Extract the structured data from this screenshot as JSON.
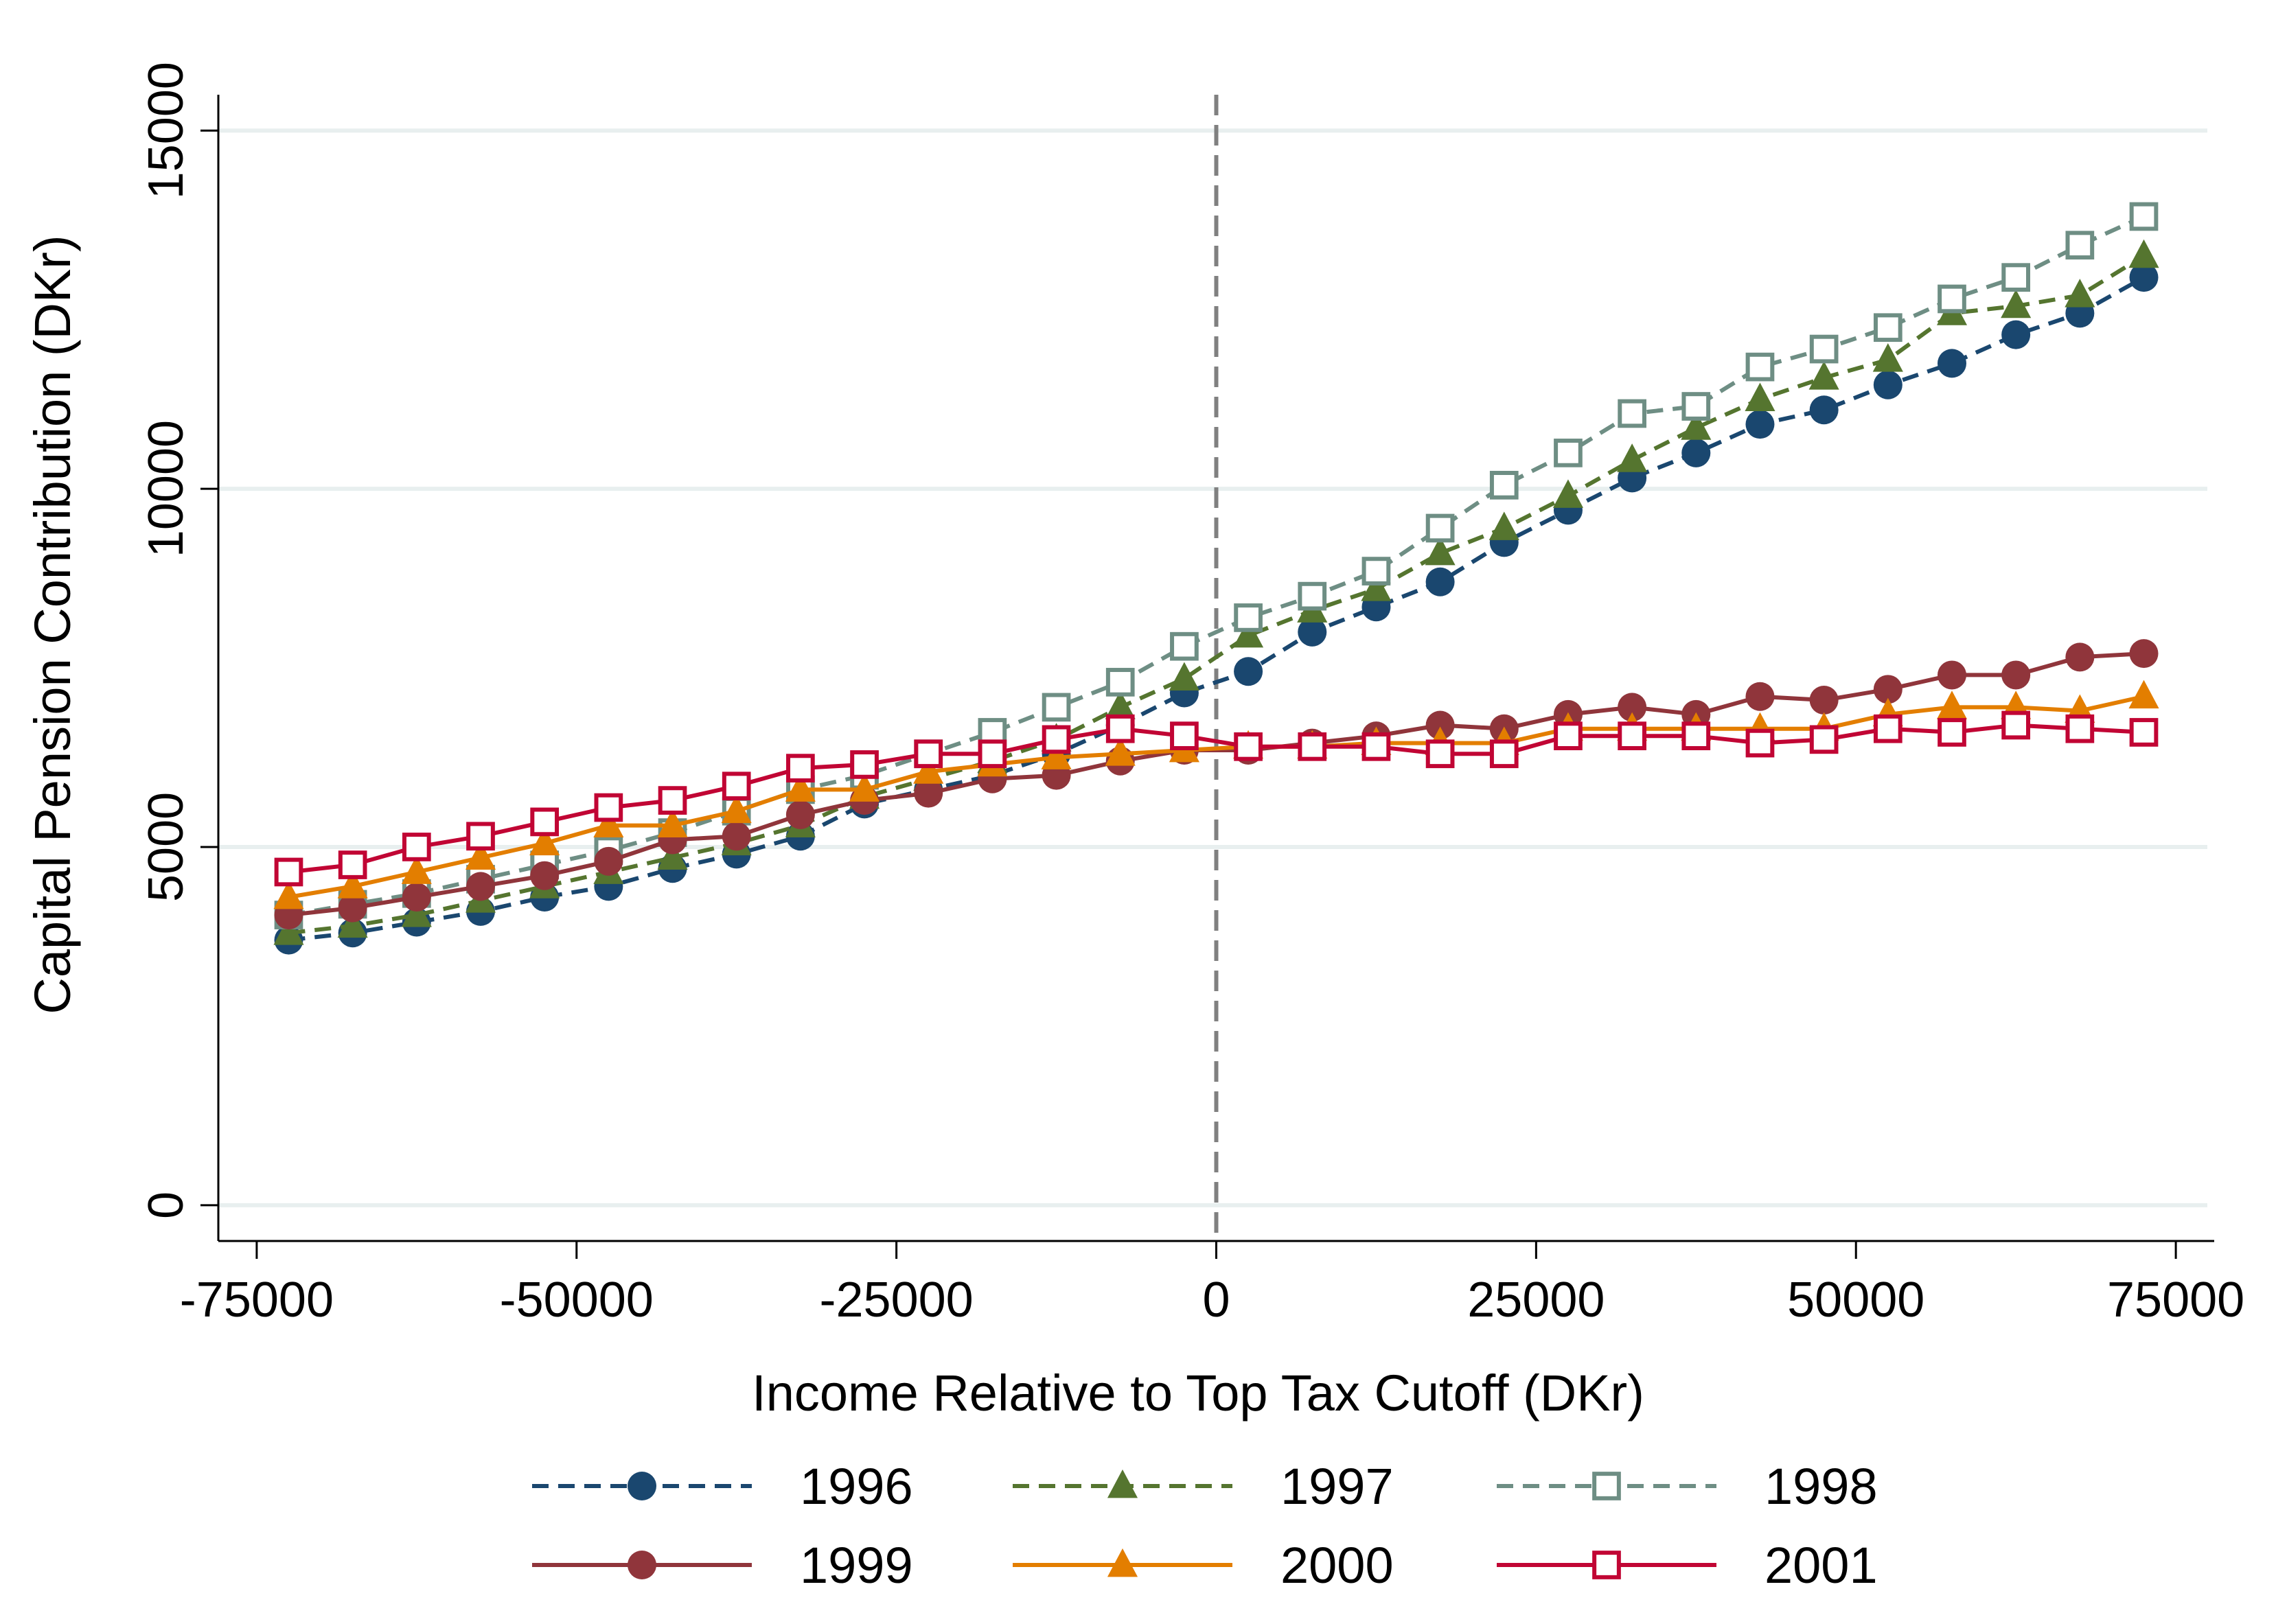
{
  "chart_data": {
    "type": "line",
    "title": "",
    "xlabel": "Income Relative to Top Tax Cutoff (DKr)",
    "ylabel": "Capital Pension Contribution (DKr)",
    "xlim": [
      -78000,
      78000
    ],
    "ylim": [
      -500,
      15500
    ],
    "xticks": [
      -75000,
      -50000,
      -25000,
      0,
      25000,
      50000,
      75000
    ],
    "yticks": [
      0,
      5000,
      10000,
      15000
    ],
    "grid": "horizontal",
    "reference_line_x": 0,
    "legend_position": "bottom",
    "x": [
      -72500,
      -67500,
      -62500,
      -57500,
      -52500,
      -47500,
      -42500,
      -37500,
      -32500,
      -27500,
      -22500,
      -17500,
      -12500,
      -7500,
      -2500,
      2500,
      7500,
      12500,
      17500,
      22500,
      27500,
      32500,
      37500,
      42500,
      47500,
      52500,
      57500,
      62500,
      67500,
      72500
    ],
    "series": [
      {
        "name": "1996",
        "color": "#1a476f",
        "dash": "dashed",
        "marker": "circle",
        "values": [
          3700,
          3800,
          3950,
          4100,
          4300,
          4450,
          4700,
          4900,
          5150,
          5600,
          5800,
          6000,
          6300,
          6700,
          7150,
          7450,
          8000,
          8350,
          8700,
          9250,
          9700,
          10150,
          10500,
          10900,
          11100,
          11450,
          11750,
          12150,
          12450,
          12950
        ]
      },
      {
        "name": "1997",
        "color": "#55752f",
        "dash": "dashed",
        "marker": "triangle",
        "values": [
          3800,
          3900,
          4050,
          4250,
          4450,
          4650,
          4850,
          5050,
          5300,
          5700,
          5950,
          6200,
          6500,
          6950,
          7350,
          7950,
          8300,
          8600,
          9100,
          9450,
          9900,
          10400,
          10850,
          11250,
          11550,
          11800,
          12450,
          12550,
          12700,
          13250
        ]
      },
      {
        "name": "1998",
        "color": "#6e8e84",
        "dash": "dashed",
        "marker": "hollow-square",
        "values": [
          4050,
          4200,
          4350,
          4550,
          4750,
          4950,
          5200,
          5500,
          5800,
          6000,
          6300,
          6600,
          6950,
          7300,
          7800,
          8200,
          8500,
          8850,
          9450,
          10050,
          10500,
          11050,
          11150,
          11700,
          11950,
          12250,
          12650,
          12950,
          13400,
          13800
        ]
      },
      {
        "name": "1999",
        "color": "#90353b",
        "dash": "solid",
        "marker": "circle",
        "values": [
          4050,
          4150,
          4300,
          4450,
          4600,
          4800,
          5100,
          5150,
          5450,
          5650,
          5750,
          5950,
          6000,
          6200,
          6350,
          6350,
          6450,
          6550,
          6700,
          6650,
          6850,
          6950,
          6850,
          7100,
          7050,
          7200,
          7400,
          7400,
          7650,
          7700
        ]
      },
      {
        "name": "2000",
        "color": "#e37e00",
        "dash": "solid",
        "marker": "triangle",
        "values": [
          4300,
          4450,
          4650,
          4850,
          5050,
          5300,
          5300,
          5500,
          5800,
          5800,
          6050,
          6150,
          6250,
          6300,
          6350,
          6400,
          6400,
          6450,
          6450,
          6450,
          6650,
          6650,
          6650,
          6650,
          6650,
          6850,
          6950,
          6950,
          6900,
          7100
        ]
      },
      {
        "name": "2001",
        "color": "#c10534",
        "dash": "solid",
        "marker": "hollow-square",
        "values": [
          4650,
          4750,
          5000,
          5150,
          5350,
          5550,
          5650,
          5850,
          6100,
          6150,
          6300,
          6300,
          6500,
          6650,
          6550,
          6400,
          6400,
          6400,
          6300,
          6300,
          6550,
          6550,
          6550,
          6450,
          6500,
          6650,
          6600,
          6700,
          6650,
          6600
        ]
      }
    ]
  }
}
